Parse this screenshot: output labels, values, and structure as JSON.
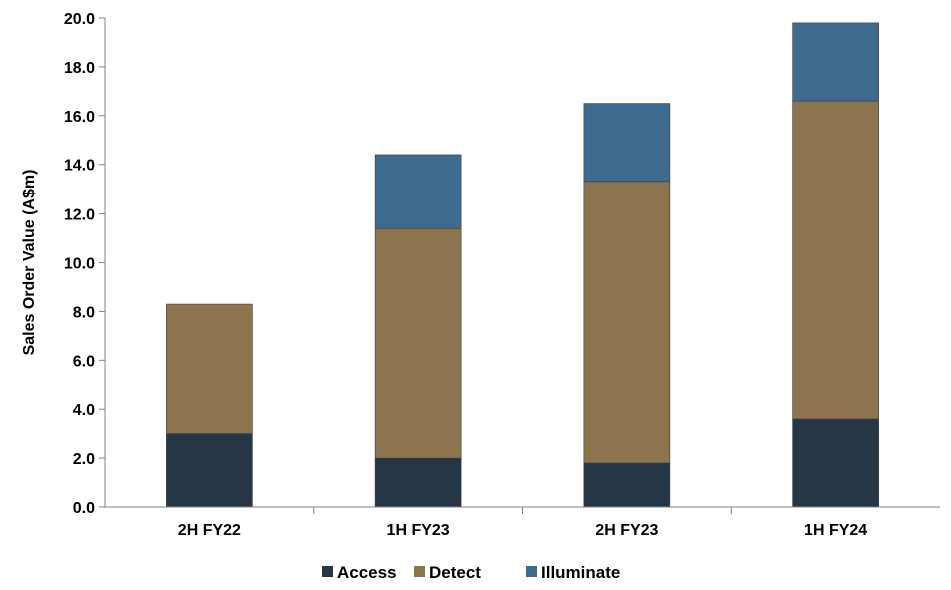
{
  "chart_data": {
    "type": "bar",
    "stacked": true,
    "categories": [
      "2H FY22",
      "1H FY23",
      "2H FY23",
      "1H FY24"
    ],
    "series": [
      {
        "name": "Access",
        "values": [
          3.0,
          2.0,
          1.8,
          3.6
        ],
        "color": "#253746"
      },
      {
        "name": "Detect",
        "values": [
          5.3,
          9.4,
          11.5,
          13.0
        ],
        "color": "#8b744e"
      },
      {
        "name": "Illuminate",
        "values": [
          0.0,
          3.0,
          3.2,
          3.2
        ],
        "color": "#3f6b8e"
      }
    ],
    "ylabel": "Sales Order Value (A$m)",
    "ylim": [
      0,
      20
    ],
    "yticks": [
      "0.0",
      "2.0",
      "4.0",
      "6.0",
      "8.0",
      "10.0",
      "12.0",
      "14.0",
      "16.0",
      "18.0",
      "20.0"
    ],
    "grid": false,
    "legend_position": "bottom"
  }
}
